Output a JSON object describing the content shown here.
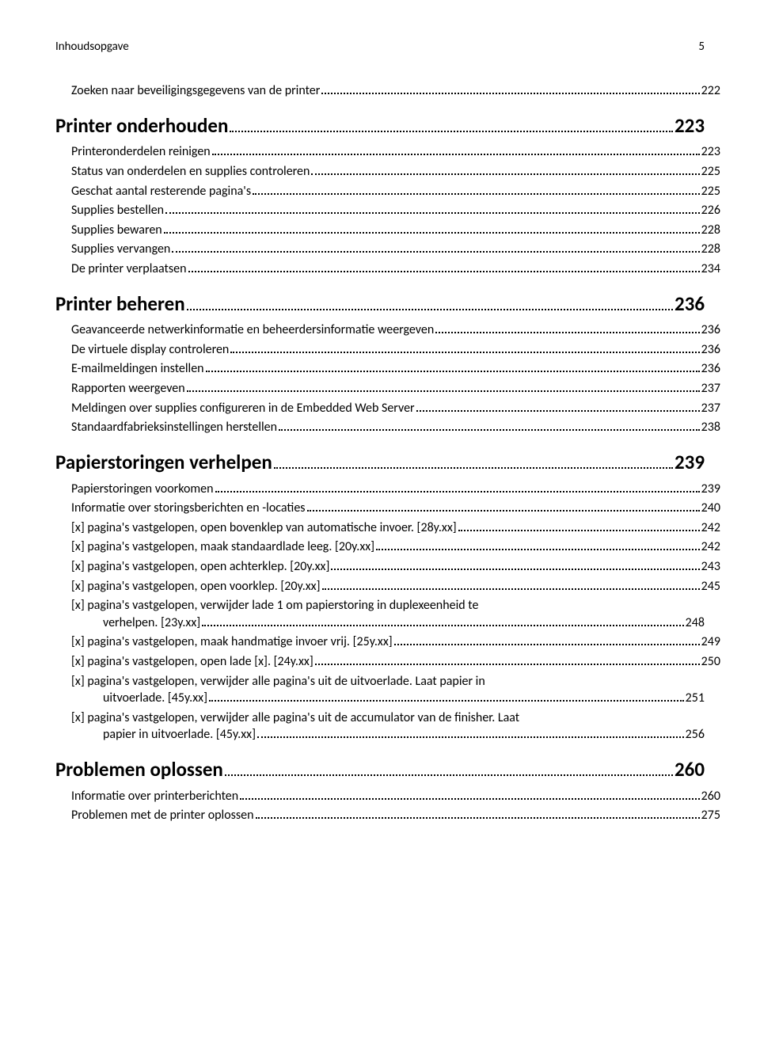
{
  "header": {
    "title": "Inhoudsopgave",
    "page_number": "5"
  },
  "entries": [
    {
      "type": "level2",
      "label": "Zoeken naar beveiligingsgegevens van de printer",
      "page": "222"
    },
    {
      "type": "level1",
      "label": "Printer onderhouden",
      "page": "223"
    },
    {
      "type": "level2",
      "label": "Printeronderdelen reinigen",
      "page": "223"
    },
    {
      "type": "level2",
      "label": "Status van onderdelen en supplies controleren",
      "page": "225"
    },
    {
      "type": "level2",
      "label": "Geschat aantal resterende pagina's",
      "page": "225"
    },
    {
      "type": "level2",
      "label": "Supplies bestellen",
      "page": "226"
    },
    {
      "type": "level2",
      "label": "Supplies bewaren",
      "page": "228"
    },
    {
      "type": "level2",
      "label": "Supplies vervangen",
      "page": "228"
    },
    {
      "type": "level2",
      "label": "De printer verplaatsen",
      "page": "234"
    },
    {
      "type": "level1",
      "label": "Printer beheren",
      "page": "236"
    },
    {
      "type": "level2",
      "label": "Geavanceerde netwerkinformatie en beheerdersinformatie weergeven",
      "page": "236"
    },
    {
      "type": "level2",
      "label": "De virtuele display controleren",
      "page": "236"
    },
    {
      "type": "level2",
      "label": "E-mailmeldingen instellen",
      "page": "236"
    },
    {
      "type": "level2",
      "label": "Rapporten weergeven",
      "page": "237"
    },
    {
      "type": "level2",
      "label": "Meldingen over supplies configureren in de Embedded Web Server",
      "page": "237"
    },
    {
      "type": "level2",
      "label": "Standaardfabrieksinstellingen herstellen",
      "page": "238"
    },
    {
      "type": "level1",
      "label": "Papierstoringen verhelpen",
      "page": "239"
    },
    {
      "type": "level2",
      "label": "Papierstoringen voorkomen",
      "page": "239"
    },
    {
      "type": "level2",
      "label": "Informatie over storingsberichten en -locaties",
      "page": "240"
    },
    {
      "type": "level2",
      "label": "[x] pagina's vastgelopen, open bovenklep van automatische invoer. [28y.xx]",
      "page": "242"
    },
    {
      "type": "level2",
      "label": "[x] pagina's vastgelopen, maak standaardlade leeg. [20y.xx]",
      "page": "242"
    },
    {
      "type": "level2",
      "label": "[x] pagina's vastgelopen, open achterklep. [20y.xx]",
      "page": "243"
    },
    {
      "type": "level2",
      "label": "[x] pagina's vastgelopen, open voorklep. [20y.xx]",
      "page": "245"
    },
    {
      "type": "wrap",
      "lead": "[x] pagina's vastgelopen, verwijder lade 1 om papierstoring in duplexeenheid te",
      "cont": "verhelpen. [23y.xx]",
      "page": "248"
    },
    {
      "type": "level2",
      "label": "[x] pagina's vastgelopen, maak handmatige invoer vrij. [25y.xx]",
      "page": "249"
    },
    {
      "type": "level2",
      "label": "[x] pagina's vastgelopen, open lade [x]. [24y.xx]",
      "page": "250"
    },
    {
      "type": "wrap",
      "lead": "[x] pagina's vastgelopen, verwijder alle pagina's uit de uitvoerlade. Laat papier in",
      "cont": "uitvoerlade. [45y.xx]",
      "page": "251"
    },
    {
      "type": "wrap",
      "lead": "[x] pagina's vastgelopen, verwijder alle pagina's uit de accumulator van de finisher. Laat",
      "cont": "papier in uitvoerlade. [45y.xx]",
      "page": "256"
    },
    {
      "type": "level1",
      "label": "Problemen oplossen",
      "page": "260"
    },
    {
      "type": "level2",
      "label": "Informatie over printerberichten",
      "page": "260"
    },
    {
      "type": "level2",
      "label": "Problemen met de printer oplossen",
      "page": "275"
    }
  ]
}
